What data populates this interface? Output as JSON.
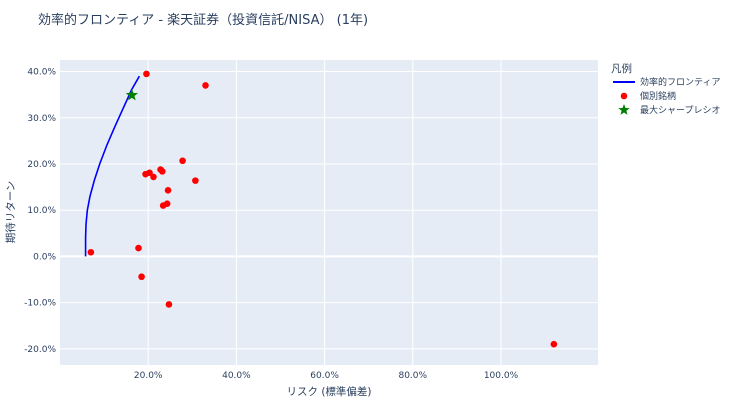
{
  "chart_data": {
    "type": "scatter",
    "title": "効率的フロンティア - 楽天証券（投資信託/NISA） (1年)",
    "xlabel": "リスク (標準偏差)",
    "ylabel": "期待リターン",
    "xlim": [
      0.0,
      1.22
    ],
    "ylim": [
      -0.235,
      0.425
    ],
    "xticks": [
      0.2,
      0.4,
      0.6,
      0.8,
      1.0
    ],
    "xtick_labels": [
      "20.0%",
      "40.0%",
      "60.0%",
      "80.0%",
      "100.0%"
    ],
    "yticks": [
      -0.2,
      -0.1,
      0.0,
      0.1,
      0.2,
      0.3,
      0.4
    ],
    "ytick_labels": [
      "-20.0%",
      "-10.0%",
      "0.0%",
      "10.0%",
      "20.0%",
      "30.0%",
      "40.0%"
    ],
    "grid": true,
    "legend_title": "凡例",
    "legend_position": "right",
    "series": [
      {
        "name": "効率的フロンティア",
        "kind": "line",
        "color": "#0000ff",
        "points": [
          [
            0.058,
            0.0
          ],
          [
            0.058,
            0.04
          ],
          [
            0.059,
            0.07
          ],
          [
            0.062,
            0.1
          ],
          [
            0.068,
            0.13
          ],
          [
            0.078,
            0.165
          ],
          [
            0.09,
            0.2
          ],
          [
            0.106,
            0.24
          ],
          [
            0.124,
            0.28
          ],
          [
            0.143,
            0.32
          ],
          [
            0.162,
            0.36
          ],
          [
            0.18,
            0.39
          ]
        ]
      },
      {
        "name": "個別銘柄",
        "kind": "markers",
        "color": "#ff0000",
        "points": [
          [
            0.196,
            0.395
          ],
          [
            0.33,
            0.37
          ],
          [
            0.278,
            0.207
          ],
          [
            0.228,
            0.188
          ],
          [
            0.232,
            0.184
          ],
          [
            0.203,
            0.181
          ],
          [
            0.194,
            0.178
          ],
          [
            0.212,
            0.172
          ],
          [
            0.307,
            0.164
          ],
          [
            0.245,
            0.143
          ],
          [
            0.243,
            0.114
          ],
          [
            0.234,
            0.11
          ],
          [
            0.07,
            0.009
          ],
          [
            0.178,
            0.018
          ],
          [
            0.185,
            -0.044
          ],
          [
            0.247,
            -0.104
          ],
          [
            1.12,
            -0.19
          ]
        ]
      },
      {
        "name": "最大シャープレシオ",
        "kind": "star",
        "color": "#008000",
        "points": [
          [
            0.163,
            0.349
          ]
        ]
      }
    ]
  }
}
